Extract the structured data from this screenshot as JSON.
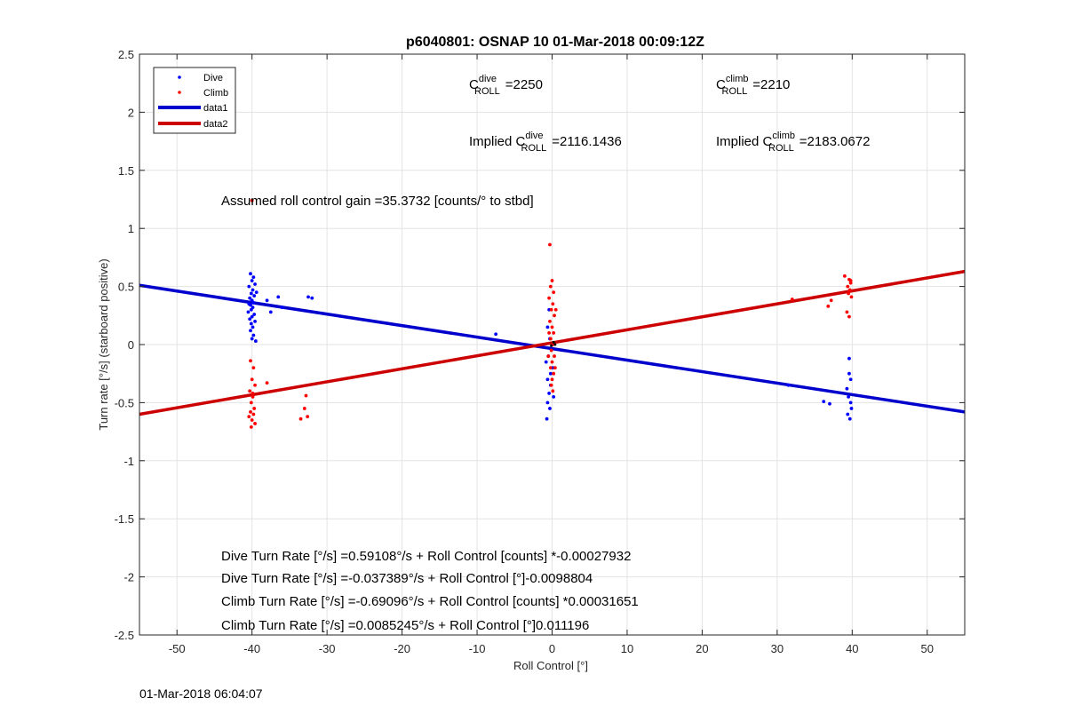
{
  "chart_data": {
    "type": "scatter",
    "title": "p6040801: OSNAP 10 01-Mar-2018 00:09:12Z",
    "xlabel": "Roll Control [°]",
    "ylabel": "Turn rate [°/s] (starboard positive)",
    "xlim": [
      -55,
      55
    ],
    "ylim": [
      -2.5,
      2.5
    ],
    "xticks": [
      -50,
      -40,
      -30,
      -20,
      -10,
      0,
      10,
      20,
      30,
      40,
      50
    ],
    "yticks": [
      -2.5,
      -2,
      -1.5,
      -1,
      -0.5,
      0,
      0.5,
      1,
      1.5,
      2,
      2.5
    ],
    "xtick_labels": [
      "-50",
      "-40",
      "-30",
      "-20",
      "-10",
      "0",
      "10",
      "20",
      "30",
      "40",
      "50"
    ],
    "ytick_labels": [
      "-2.5",
      "-2",
      "-1.5",
      "-1",
      "-0.5",
      "0",
      "0.5",
      "1",
      "1.5",
      "2",
      "2.5"
    ],
    "grid": true,
    "legend_position": "top-left",
    "legend": [
      {
        "label": "Dive",
        "kind": "marker",
        "color": "#0000ff"
      },
      {
        "label": "Climb",
        "kind": "marker",
        "color": "#ff0000"
      },
      {
        "label": "data1",
        "kind": "line",
        "color": "#0000cc"
      },
      {
        "label": "data2",
        "kind": "line",
        "color": "#cc0000"
      }
    ],
    "series": [
      {
        "name": "Dive",
        "kind": "scatter",
        "color": "#0000ff",
        "points": [
          [
            -40.2,
            0.61
          ],
          [
            -39.8,
            0.58
          ],
          [
            -40.0,
            0.55
          ],
          [
            -39.6,
            0.52
          ],
          [
            -40.4,
            0.5
          ],
          [
            -39.9,
            0.47
          ],
          [
            -40.1,
            0.44
          ],
          [
            -39.7,
            0.42
          ],
          [
            -40.3,
            0.4
          ],
          [
            -40.0,
            0.38
          ],
          [
            -39.8,
            0.36
          ],
          [
            -40.2,
            0.34
          ],
          [
            -39.9,
            0.32
          ],
          [
            -40.1,
            0.3
          ],
          [
            -40.5,
            0.28
          ],
          [
            -39.7,
            0.26
          ],
          [
            -40.0,
            0.24
          ],
          [
            -40.3,
            0.22
          ],
          [
            -39.6,
            0.2
          ],
          [
            -40.1,
            0.18
          ],
          [
            -39.9,
            0.15
          ],
          [
            -40.2,
            0.12
          ],
          [
            -39.8,
            0.08
          ],
          [
            -40.0,
            0.05
          ],
          [
            -39.5,
            0.03
          ],
          [
            -40.4,
            0.35
          ],
          [
            -39.4,
            0.45
          ],
          [
            -38.0,
            0.38
          ],
          [
            -37.5,
            0.28
          ],
          [
            -36.5,
            0.41
          ],
          [
            -36.0,
            0.32
          ],
          [
            -32.5,
            0.41
          ],
          [
            -32.0,
            0.4
          ],
          [
            -7.5,
            0.09
          ],
          [
            -0.8,
            -0.15
          ],
          [
            -0.6,
            -0.3
          ],
          [
            -0.4,
            -0.42
          ],
          [
            -0.6,
            -0.5
          ],
          [
            -0.3,
            -0.55
          ],
          [
            -0.7,
            -0.64
          ],
          [
            -0.2,
            -0.25
          ],
          [
            -0.5,
            -0.1
          ],
          [
            -0.3,
            0.05
          ],
          [
            -0.6,
            0.15
          ],
          [
            -0.4,
            0.3
          ],
          [
            -0.2,
            -0.35
          ],
          [
            0.2,
            -0.45
          ],
          [
            0.1,
            -0.2
          ],
          [
            36.2,
            -0.49
          ],
          [
            37.0,
            -0.51
          ],
          [
            39.3,
            -0.38
          ],
          [
            39.6,
            -0.12
          ],
          [
            39.8,
            -0.3
          ],
          [
            39.5,
            -0.45
          ],
          [
            39.9,
            -0.55
          ],
          [
            39.4,
            -0.6
          ],
          [
            39.7,
            -0.64
          ],
          [
            39.6,
            -0.25
          ],
          [
            39.8,
            -0.5
          ],
          [
            31.5,
            -0.35
          ]
        ]
      },
      {
        "name": "Climb",
        "kind": "scatter",
        "color": "#ff0000",
        "points": [
          [
            -40.0,
            1.24
          ],
          [
            -40.2,
            -0.14
          ],
          [
            -39.8,
            -0.2
          ],
          [
            -40.0,
            -0.3
          ],
          [
            -39.6,
            -0.35
          ],
          [
            -40.3,
            -0.4
          ],
          [
            -39.9,
            -0.45
          ],
          [
            -40.1,
            -0.5
          ],
          [
            -39.7,
            -0.55
          ],
          [
            -40.2,
            -0.58
          ],
          [
            -39.8,
            -0.6
          ],
          [
            -40.4,
            -0.62
          ],
          [
            -40.0,
            -0.65
          ],
          [
            -39.6,
            -0.68
          ],
          [
            -40.1,
            -0.71
          ],
          [
            -39.9,
            -0.42
          ],
          [
            -38.0,
            -0.33
          ],
          [
            -33.5,
            -0.64
          ],
          [
            -32.6,
            -0.62
          ],
          [
            -33.0,
            -0.55
          ],
          [
            -32.8,
            -0.44
          ],
          [
            -0.3,
            0.86
          ],
          [
            0.0,
            0.55
          ],
          [
            -0.2,
            0.5
          ],
          [
            0.2,
            0.45
          ],
          [
            -0.4,
            0.4
          ],
          [
            0.1,
            0.35
          ],
          [
            -0.1,
            0.3
          ],
          [
            0.3,
            0.25
          ],
          [
            -0.3,
            0.2
          ],
          [
            0.0,
            0.15
          ],
          [
            0.2,
            0.1
          ],
          [
            -0.2,
            0.05
          ],
          [
            0.1,
            0.0
          ],
          [
            -0.1,
            -0.05
          ],
          [
            0.3,
            -0.1
          ],
          [
            0.0,
            -0.15
          ],
          [
            -0.2,
            -0.2
          ],
          [
            0.2,
            -0.25
          ],
          [
            0.0,
            -0.3
          ],
          [
            -0.1,
            -0.35
          ],
          [
            0.1,
            -0.4
          ],
          [
            0.4,
            -0.2
          ],
          [
            -0.4,
            0.1
          ],
          [
            0.5,
            0.3
          ],
          [
            -0.5,
            -0.1
          ],
          [
            32.0,
            0.39
          ],
          [
            36.8,
            0.33
          ],
          [
            37.2,
            0.38
          ],
          [
            39.0,
            0.59
          ],
          [
            39.6,
            0.56
          ],
          [
            39.8,
            0.53
          ],
          [
            39.4,
            0.5
          ],
          [
            39.7,
            0.47
          ],
          [
            39.5,
            0.44
          ],
          [
            39.9,
            0.41
          ],
          [
            39.3,
            0.28
          ],
          [
            39.6,
            0.24
          ],
          [
            39.8,
            0.55
          ]
        ]
      },
      {
        "name": "data1",
        "kind": "line",
        "color": "#0000cc",
        "x": [
          -55,
          55
        ],
        "y": [
          0.51,
          -0.58
        ]
      },
      {
        "name": "data2",
        "kind": "line",
        "color": "#cc0000",
        "x": [
          -55,
          55
        ],
        "y": [
          -0.6,
          0.63
        ]
      }
    ]
  },
  "annotations": {
    "c_dive": {
      "prefix": "C",
      "sup": "dive",
      "sub": "ROLL",
      "value": "=2250"
    },
    "c_climb": {
      "prefix": "C",
      "sup": "climb",
      "sub": "ROLL",
      "value": "=2210"
    },
    "implied_dive": {
      "prefix": "Implied C",
      "sup": "dive",
      "sub": "ROLL",
      "value": "=2116.1436"
    },
    "implied_climb": {
      "prefix": "Implied C",
      "sup": "climb",
      "sub": "ROLL",
      "value": "=2183.0672"
    },
    "gain": "Assumed roll control gain =35.3732 [counts/° to stbd]",
    "fit1": "Dive Turn Rate [°/s] =0.59108°/s + Roll Control [counts] *-0.00027932",
    "fit2": "Dive Turn Rate [°/s] =-0.037389°/s + Roll Control [°]-0.0098804",
    "fit3": "Climb Turn Rate [°/s] =-0.69096°/s + Roll Control [counts] *0.00031651",
    "fit4": "Climb Turn Rate [°/s] =0.0085245°/s + Roll Control [°]0.011196"
  },
  "timestamp": "01-Mar-2018 06:04:07"
}
